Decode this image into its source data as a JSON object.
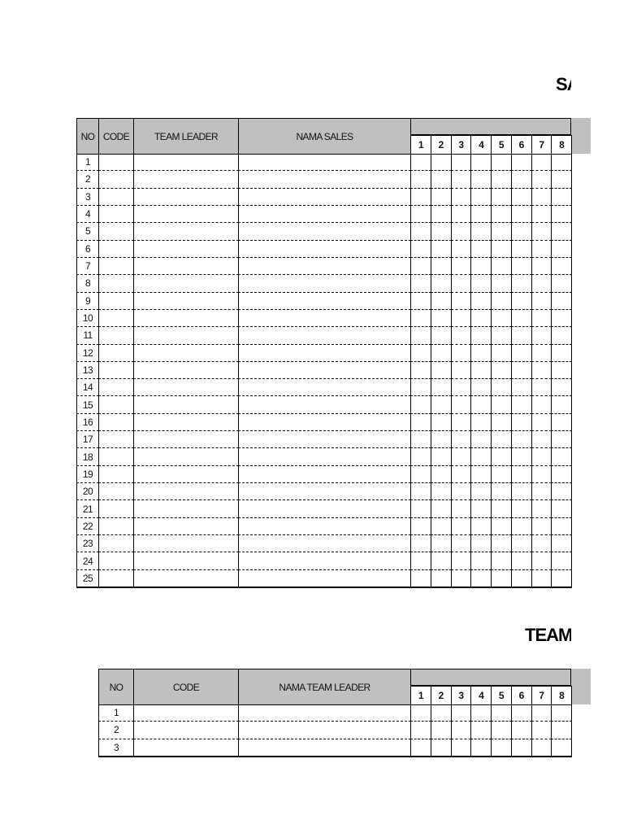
{
  "section1": {
    "title": "SA",
    "table": {
      "headers": [
        "NO",
        "CODE",
        "TEAM LEADER",
        "NAMA SALES"
      ],
      "days": [
        "1",
        "2",
        "3",
        "4",
        "5",
        "6",
        "7",
        "8"
      ],
      "rows": [
        "1",
        "2",
        "3",
        "4",
        "5",
        "6",
        "7",
        "8",
        "9",
        "10",
        "11",
        "12",
        "13",
        "14",
        "15",
        "16",
        "17",
        "18",
        "19",
        "20",
        "21",
        "22",
        "23",
        "24",
        "25"
      ]
    }
  },
  "section2": {
    "title": "TEAM",
    "table": {
      "headers": [
        "NO",
        "CODE",
        "NAMA TEAM LEADER"
      ],
      "days": [
        "1",
        "2",
        "3",
        "4",
        "5",
        "6",
        "7",
        "8"
      ],
      "rows": [
        "1",
        "2",
        "3"
      ]
    }
  }
}
